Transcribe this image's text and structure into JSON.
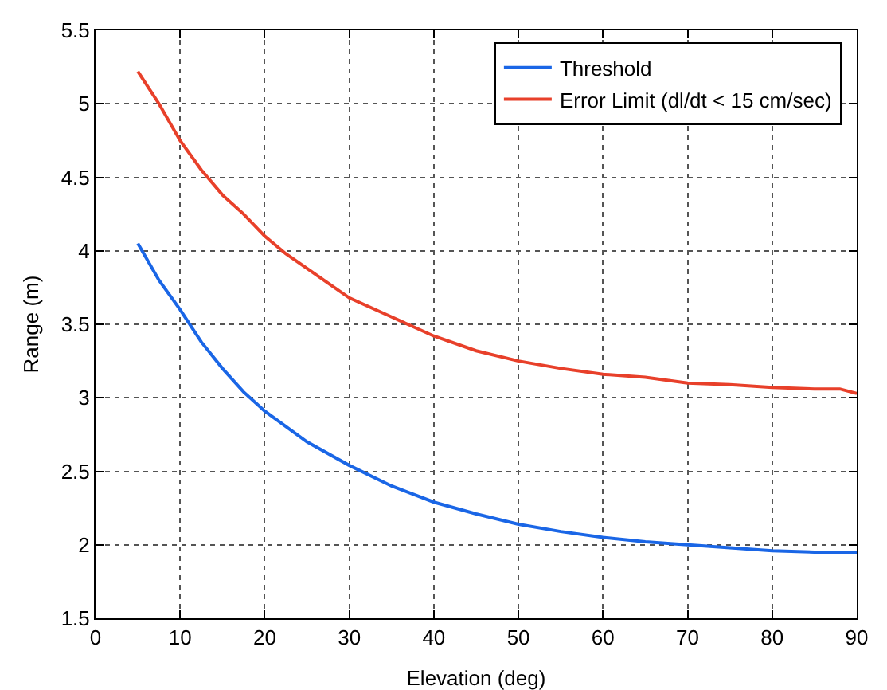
{
  "chart_data": {
    "type": "line",
    "xlabel": "Elevation (deg)",
    "ylabel": "Range (m)",
    "xlim": [
      0,
      90
    ],
    "xticks": [
      0,
      10,
      20,
      30,
      40,
      50,
      60,
      70,
      80,
      90
    ],
    "ylim": [
      1.5,
      5.5
    ],
    "yticks": [
      1.5,
      2,
      2.5,
      3,
      3.5,
      4,
      4.5,
      5,
      5.5
    ],
    "grid": true,
    "legend": "top right",
    "marker": "none",
    "line_style": "solid",
    "series": [
      {
        "name": "Threshold",
        "color": "#1a66e6",
        "x": [
          5,
          7.5,
          10,
          12.5,
          15,
          17.5,
          20,
          25,
          30,
          35,
          40,
          45,
          50,
          55,
          60,
          65,
          70,
          75,
          80,
          85,
          90
        ],
        "values": [
          4.05,
          3.8,
          3.6,
          3.38,
          3.2,
          3.04,
          2.91,
          2.7,
          2.54,
          2.4,
          2.29,
          2.21,
          2.14,
          2.09,
          2.05,
          2.02,
          2.0,
          1.98,
          1.96,
          1.95,
          1.95
        ]
      },
      {
        "name": "Error Limit (dl/dt < 15 cm/sec)",
        "color": "#e8402a",
        "x": [
          5,
          7.5,
          10,
          12.5,
          15,
          17.5,
          20,
          22.5,
          25,
          27.5,
          30,
          35,
          40,
          45,
          50,
          55,
          60,
          65,
          70,
          75,
          80,
          85,
          88,
          90
        ],
        "values": [
          5.22,
          5.0,
          4.75,
          4.55,
          4.38,
          4.25,
          4.1,
          3.98,
          3.88,
          3.78,
          3.68,
          3.55,
          3.42,
          3.32,
          3.25,
          3.2,
          3.16,
          3.14,
          3.1,
          3.09,
          3.07,
          3.06,
          3.06,
          3.03
        ]
      }
    ]
  }
}
